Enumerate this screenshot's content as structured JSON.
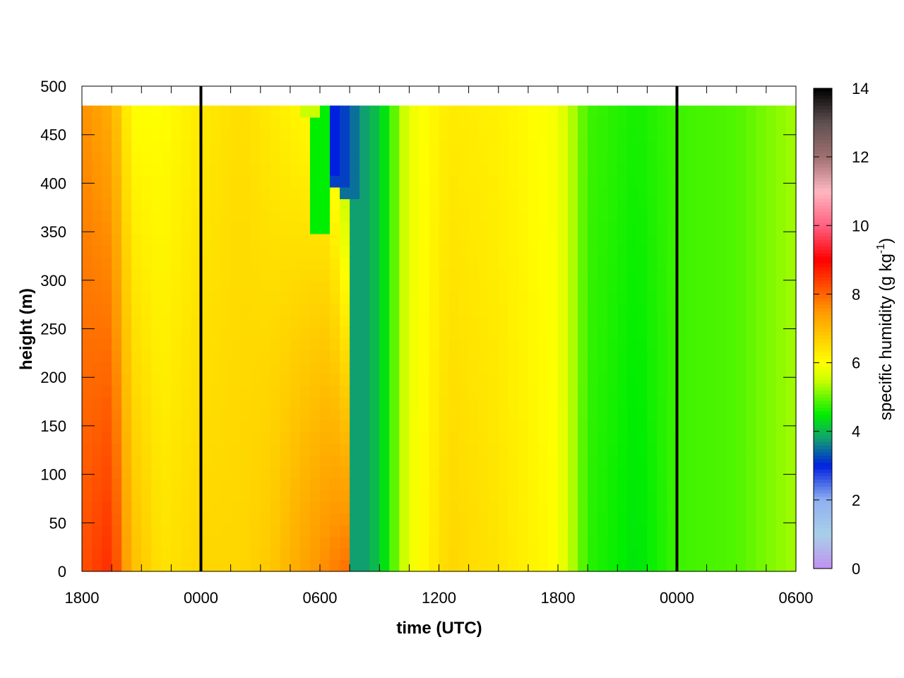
{
  "chart_data": {
    "type": "heatmap",
    "xlabel": "time (UTC)",
    "ylabel": "height (m)",
    "x_tick_labels": [
      "1800",
      "0000",
      "0600",
      "1200",
      "1800",
      "0000",
      "0600"
    ],
    "x_range_hours": [
      0,
      36
    ],
    "y_ticks": [
      0,
      50,
      100,
      150,
      200,
      250,
      300,
      350,
      400,
      450,
      500
    ],
    "ylim": [
      0,
      500
    ],
    "data_top_height": 480,
    "midnight_lines_hours": [
      6,
      30
    ],
    "colorbar": {
      "title_main": "specific humidity (g kg",
      "title_sup": "-1",
      "title_close": ")",
      "ticks": [
        0,
        2,
        4,
        6,
        8,
        10,
        12,
        14
      ],
      "range": [
        0,
        14
      ],
      "stops": [
        {
          "v": 0,
          "c": "#c090f0"
        },
        {
          "v": 1,
          "c": "#a8d0e8"
        },
        {
          "v": 2,
          "c": "#90b0f0"
        },
        {
          "v": 3,
          "c": "#0020e0"
        },
        {
          "v": 3.8,
          "c": "#10a070"
        },
        {
          "v": 4.5,
          "c": "#00ee00"
        },
        {
          "v": 5.5,
          "c": "#ccff00"
        },
        {
          "v": 6,
          "c": "#ffff00"
        },
        {
          "v": 6.5,
          "c": "#ffdd00"
        },
        {
          "v": 7.5,
          "c": "#ff9900"
        },
        {
          "v": 9,
          "c": "#ff0000"
        },
        {
          "v": 10,
          "c": "#ff6080"
        },
        {
          "v": 11,
          "c": "#ffb8c0"
        },
        {
          "v": 12,
          "c": "#a07070"
        },
        {
          "v": 13,
          "c": "#605050"
        },
        {
          "v": 14,
          "c": "#000000"
        }
      ]
    },
    "time_profile": [
      {
        "t": 0.0,
        "base": 8.2,
        "grad": -0.6
      },
      {
        "t": 1.5,
        "base": 8.6,
        "grad": -1.4
      },
      {
        "t": 2.5,
        "base": 7.0,
        "grad": -1.0
      },
      {
        "t": 4.0,
        "base": 6.4,
        "grad": -0.4
      },
      {
        "t": 6.0,
        "base": 6.6,
        "grad": -0.3
      },
      {
        "t": 8.0,
        "base": 6.6,
        "grad": -0.1
      },
      {
        "t": 9.5,
        "base": 6.8,
        "grad": -0.5
      },
      {
        "t": 11.0,
        "base": 7.3,
        "grad": -1.2
      },
      {
        "t": 12.5,
        "base": 7.7,
        "grad": -1.8
      },
      {
        "t": 13.3,
        "base": 7.9,
        "grad": -3.0
      },
      {
        "t": 14.0,
        "base": 3.8,
        "grad": 0.0
      },
      {
        "t": 15.0,
        "base": 4.1,
        "grad": 0.0
      },
      {
        "t": 16.5,
        "base": 5.8,
        "grad": 0.0
      },
      {
        "t": 18.5,
        "base": 6.6,
        "grad": -0.3
      },
      {
        "t": 21.0,
        "base": 6.4,
        "grad": -0.2
      },
      {
        "t": 24.0,
        "base": 6.0,
        "grad": -0.1
      },
      {
        "t": 25.5,
        "base": 4.7,
        "grad": 0.1
      },
      {
        "t": 28.0,
        "base": 4.4,
        "grad": 0.2
      },
      {
        "t": 30.0,
        "base": 4.8,
        "grad": 0.0
      },
      {
        "t": 33.0,
        "base": 4.9,
        "grad": 0.0
      },
      {
        "t": 36.0,
        "base": 5.3,
        "grad": 0.0
      }
    ],
    "dry_intrusion": [
      {
        "t": 11.5,
        "top": 500,
        "bottom": 470,
        "value": 5.5
      },
      {
        "t": 12.0,
        "top": 500,
        "bottom": 350,
        "value": 4.5
      },
      {
        "t": 12.5,
        "top": 500,
        "bottom": 410,
        "value": 3.0
      },
      {
        "t": 13.0,
        "top": 500,
        "bottom": 400,
        "value": 3.2
      },
      {
        "t": 13.5,
        "top": 500,
        "bottom": 380,
        "value": 3.5
      },
      {
        "t": 14.0,
        "top": 500,
        "bottom": 0,
        "value": 3.8
      }
    ]
  }
}
